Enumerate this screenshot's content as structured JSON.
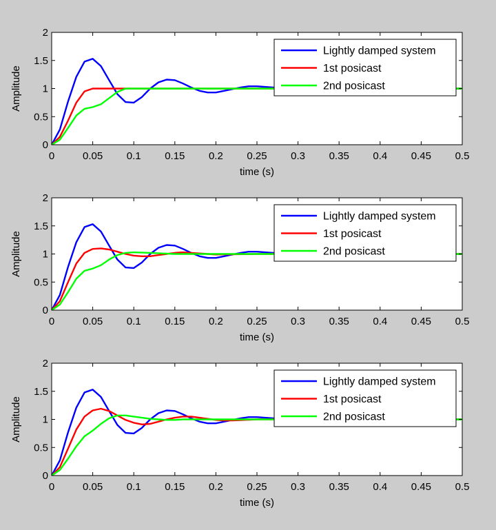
{
  "chart_data": [
    {
      "type": "line",
      "title": "",
      "xlabel": "time (s)",
      "ylabel": "Amplitude",
      "xlim": [
        0,
        0.5
      ],
      "ylim": [
        0,
        2
      ],
      "xticks": [
        "0",
        "0.05",
        "0.1",
        "0.15",
        "0.2",
        "0.25",
        "0.3",
        "0.35",
        "0.4",
        "0.45",
        "0.5"
      ],
      "yticks": [
        "0",
        "0.5",
        "1",
        "1.5",
        "2"
      ],
      "grid": false,
      "legend_position": "top-right",
      "series": [
        {
          "name": "Lightly damped system",
          "color": "#0000ff",
          "x": [
            0,
            0.01,
            0.02,
            0.03,
            0.04,
            0.05,
            0.06,
            0.07,
            0.08,
            0.09,
            0.1,
            0.11,
            0.12,
            0.13,
            0.14,
            0.15,
            0.16,
            0.17,
            0.18,
            0.19,
            0.2,
            0.21,
            0.22,
            0.23,
            0.24,
            0.25,
            0.26,
            0.27,
            0.28,
            0.29,
            0.3,
            0.35,
            0.4,
            0.45,
            0.5
          ],
          "y": [
            0,
            0.27,
            0.77,
            1.21,
            1.48,
            1.53,
            1.4,
            1.15,
            0.9,
            0.76,
            0.75,
            0.85,
            1.0,
            1.11,
            1.16,
            1.15,
            1.09,
            1.02,
            0.96,
            0.93,
            0.93,
            0.96,
            0.99,
            1.02,
            1.04,
            1.04,
            1.03,
            1.02,
            1.0,
            0.99,
            0.99,
            1.0,
            1.0,
            1.0,
            1.0
          ]
        },
        {
          "name": "1st posicast",
          "color": "#ff0000",
          "x": [
            0,
            0.01,
            0.02,
            0.03,
            0.04,
            0.05,
            0.06,
            0.07,
            0.08,
            0.09,
            0.1,
            0.2,
            0.3,
            0.4,
            0.5
          ],
          "y": [
            0,
            0.14,
            0.43,
            0.75,
            0.95,
            1.0,
            1.0,
            1.0,
            1.0,
            1.0,
            1.0,
            1.0,
            1.0,
            1.0,
            1.0
          ]
        },
        {
          "name": "2nd posicast",
          "color": "#00ff00",
          "x": [
            0,
            0.01,
            0.02,
            0.03,
            0.04,
            0.05,
            0.06,
            0.07,
            0.08,
            0.09,
            0.1,
            0.2,
            0.3,
            0.4,
            0.5
          ],
          "y": [
            0,
            0.09,
            0.3,
            0.52,
            0.64,
            0.67,
            0.72,
            0.83,
            0.94,
            1.0,
            1.0,
            1.0,
            1.0,
            1.0,
            1.0
          ]
        }
      ]
    },
    {
      "type": "line",
      "title": "",
      "xlabel": "time (s)",
      "ylabel": "Amplitude",
      "xlim": [
        0,
        0.5
      ],
      "ylim": [
        0,
        2
      ],
      "xticks": [
        "0",
        "0.05",
        "0.1",
        "0.15",
        "0.2",
        "0.25",
        "0.3",
        "0.35",
        "0.4",
        "0.45",
        "0.5"
      ],
      "yticks": [
        "0",
        "0.5",
        "1",
        "1.5",
        "2"
      ],
      "grid": false,
      "legend_position": "top-right",
      "series": [
        {
          "name": "Lightly damped system",
          "color": "#0000ff",
          "x": [
            0,
            0.01,
            0.02,
            0.03,
            0.04,
            0.05,
            0.06,
            0.07,
            0.08,
            0.09,
            0.1,
            0.11,
            0.12,
            0.13,
            0.14,
            0.15,
            0.16,
            0.17,
            0.18,
            0.19,
            0.2,
            0.21,
            0.22,
            0.23,
            0.24,
            0.25,
            0.26,
            0.27,
            0.28,
            0.29,
            0.3,
            0.35,
            0.4,
            0.45,
            0.5
          ],
          "y": [
            0,
            0.27,
            0.77,
            1.21,
            1.48,
            1.53,
            1.4,
            1.15,
            0.9,
            0.76,
            0.75,
            0.85,
            1.0,
            1.11,
            1.16,
            1.15,
            1.09,
            1.02,
            0.96,
            0.93,
            0.93,
            0.96,
            0.99,
            1.02,
            1.04,
            1.04,
            1.03,
            1.02,
            1.0,
            0.99,
            0.99,
            1.0,
            1.0,
            1.0,
            1.0
          ]
        },
        {
          "name": "1st posicast",
          "color": "#ff0000",
          "x": [
            0,
            0.01,
            0.02,
            0.03,
            0.04,
            0.05,
            0.06,
            0.07,
            0.08,
            0.09,
            0.1,
            0.11,
            0.12,
            0.13,
            0.14,
            0.15,
            0.16,
            0.17,
            0.18,
            0.19,
            0.2,
            0.25,
            0.3,
            0.4,
            0.5
          ],
          "y": [
            0,
            0.16,
            0.5,
            0.83,
            1.02,
            1.09,
            1.1,
            1.08,
            1.04,
            1.0,
            0.97,
            0.96,
            0.96,
            0.98,
            1.0,
            1.02,
            1.03,
            1.02,
            1.01,
            1.0,
            0.99,
            1.0,
            1.0,
            1.0,
            1.0
          ]
        },
        {
          "name": "2nd posicast",
          "color": "#00ff00",
          "x": [
            0,
            0.01,
            0.02,
            0.03,
            0.04,
            0.05,
            0.06,
            0.07,
            0.08,
            0.09,
            0.1,
            0.12,
            0.15,
            0.2,
            0.3,
            0.4,
            0.5
          ],
          "y": [
            0,
            0.1,
            0.32,
            0.56,
            0.7,
            0.74,
            0.8,
            0.9,
            0.98,
            1.02,
            1.03,
            1.02,
            1.0,
            1.0,
            1.0,
            1.0,
            1.0
          ]
        }
      ]
    },
    {
      "type": "line",
      "title": "",
      "xlabel": "time (s)",
      "ylabel": "Amplitude",
      "xlim": [
        0,
        0.5
      ],
      "ylim": [
        0,
        2
      ],
      "xticks": [
        "0",
        "0.05",
        "0.1",
        "0.15",
        "0.2",
        "0.25",
        "0.3",
        "0.35",
        "0.4",
        "0.45",
        "0.5"
      ],
      "yticks": [
        "0",
        "0.5",
        "1",
        "1.5",
        "2"
      ],
      "grid": false,
      "legend_position": "top-right",
      "series": [
        {
          "name": "Lightly damped system",
          "color": "#0000ff",
          "x": [
            0,
            0.01,
            0.02,
            0.03,
            0.04,
            0.05,
            0.06,
            0.07,
            0.08,
            0.09,
            0.1,
            0.11,
            0.12,
            0.13,
            0.14,
            0.15,
            0.16,
            0.17,
            0.18,
            0.19,
            0.2,
            0.21,
            0.22,
            0.23,
            0.24,
            0.25,
            0.26,
            0.27,
            0.28,
            0.29,
            0.3,
            0.35,
            0.4,
            0.45,
            0.5
          ],
          "y": [
            0,
            0.27,
            0.77,
            1.21,
            1.48,
            1.53,
            1.4,
            1.15,
            0.9,
            0.76,
            0.75,
            0.85,
            1.0,
            1.11,
            1.16,
            1.15,
            1.09,
            1.02,
            0.96,
            0.93,
            0.93,
            0.96,
            0.99,
            1.02,
            1.04,
            1.04,
            1.03,
            1.02,
            1.0,
            0.99,
            0.99,
            1.0,
            1.0,
            1.0,
            1.0
          ]
        },
        {
          "name": "1st posicast",
          "color": "#ff0000",
          "x": [
            0,
            0.01,
            0.02,
            0.03,
            0.04,
            0.05,
            0.06,
            0.07,
            0.08,
            0.09,
            0.1,
            0.11,
            0.12,
            0.13,
            0.14,
            0.15,
            0.16,
            0.17,
            0.18,
            0.19,
            0.2,
            0.21,
            0.22,
            0.25,
            0.3,
            0.4,
            0.5
          ],
          "y": [
            0,
            0.15,
            0.48,
            0.82,
            1.05,
            1.16,
            1.19,
            1.15,
            1.07,
            0.99,
            0.94,
            0.91,
            0.92,
            0.96,
            1.0,
            1.03,
            1.05,
            1.05,
            1.03,
            1.01,
            0.99,
            0.98,
            0.98,
            1.0,
            1.0,
            1.0,
            1.0
          ]
        },
        {
          "name": "2nd posicast",
          "color": "#00ff00",
          "x": [
            0,
            0.01,
            0.02,
            0.03,
            0.04,
            0.05,
            0.06,
            0.07,
            0.08,
            0.09,
            0.1,
            0.11,
            0.12,
            0.13,
            0.14,
            0.15,
            0.16,
            0.17,
            0.2,
            0.25,
            0.3,
            0.4,
            0.5
          ],
          "y": [
            0,
            0.1,
            0.3,
            0.52,
            0.7,
            0.8,
            0.92,
            1.02,
            1.07,
            1.07,
            1.05,
            1.03,
            1.01,
            1.0,
            0.99,
            0.99,
            1.0,
            1.0,
            1.0,
            1.0,
            1.0,
            1.0,
            1.0
          ]
        }
      ]
    }
  ]
}
